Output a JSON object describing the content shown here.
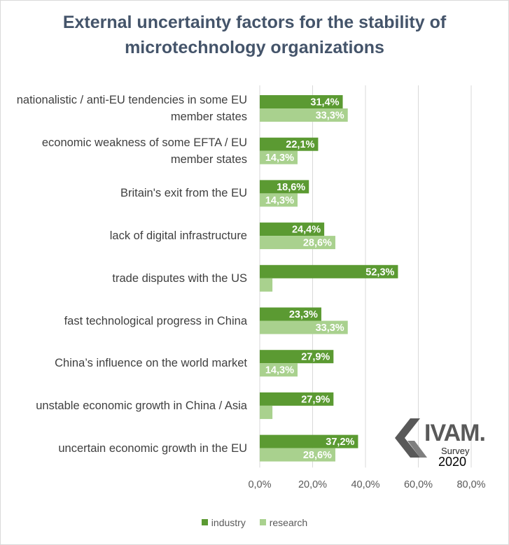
{
  "title_lines": [
    "External uncertainty factors for the stability of",
    "microtechnology organizations"
  ],
  "colors": {
    "industry": "#5b9a32",
    "research": "#a9d18e",
    "grid": "#d9d9d9",
    "title": "#44546a",
    "text": "#404040"
  },
  "logo": {
    "brand": "IVAM.",
    "survey": "Survey",
    "year": "2020"
  },
  "chart_data": {
    "type": "bar",
    "orientation": "horizontal",
    "title": "External uncertainty factors for the stability of microtechnology organizations",
    "categories": [
      [
        "nationalistic / anti-EU tendencies in some EU",
        "member states"
      ],
      [
        "economic weakness of some EFTA / EU",
        "member states"
      ],
      [
        "Britain's exit from the EU"
      ],
      [
        "lack of digital infrastructure"
      ],
      [
        "trade disputes with the US"
      ],
      [
        "fast technological progress in China"
      ],
      [
        "China’s influence on the world market"
      ],
      [
        "unstable economic growth in China / Asia"
      ],
      [
        "uncertain economic growth in the EU"
      ]
    ],
    "series": [
      {
        "name": "industry",
        "values": [
          31.4,
          22.1,
          18.6,
          24.4,
          52.3,
          23.3,
          27.9,
          27.9,
          37.2
        ],
        "labels": [
          "31,4%",
          "22,1%",
          "18,6%",
          "24,4%",
          "52,3%",
          "23,3%",
          "27,9%",
          "27,9%",
          "37,2%"
        ]
      },
      {
        "name": "research",
        "values": [
          33.3,
          14.3,
          14.3,
          28.6,
          4.8,
          33.3,
          14.3,
          4.8,
          28.6
        ],
        "labels": [
          "33,3%",
          "14,3%",
          "14,3%",
          "28,6%",
          "",
          "33,3%",
          "14,3%",
          "",
          "28,6%"
        ]
      }
    ],
    "xlim": [
      0,
      80
    ],
    "xticks": [
      0,
      20,
      40,
      60,
      80
    ],
    "xtick_labels": [
      "0,0%",
      "20,0%",
      "40,0%",
      "60,0%",
      "80,0%"
    ],
    "grid": true,
    "legend_position": "bottom"
  }
}
